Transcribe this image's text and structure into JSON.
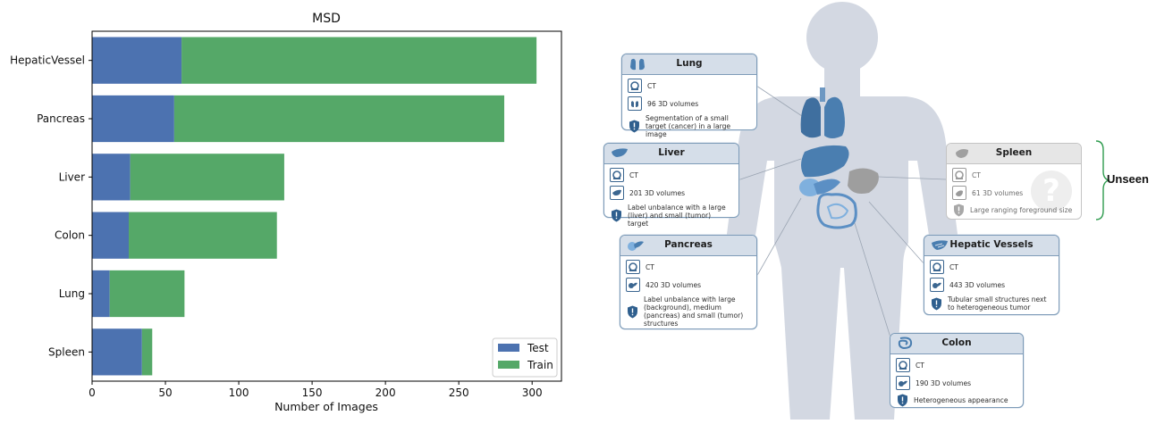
{
  "chart_data": {
    "type": "bar",
    "orientation": "horizontal",
    "stacked": true,
    "title": "MSD",
    "xlabel": "Number of Images",
    "ylabel": "",
    "categories": [
      "HepaticVessel",
      "Pancreas",
      "Liver",
      "Colon",
      "Lung",
      "Spleen"
    ],
    "series": [
      {
        "name": "Test",
        "color": "#4c72b0",
        "values": [
          61,
          56,
          26,
          25,
          12,
          34
        ]
      },
      {
        "name": "Train",
        "color": "#55a868",
        "values": [
          242,
          225,
          105,
          101,
          51,
          7
        ]
      }
    ],
    "xlim": [
      0,
      320
    ],
    "xticks": [
      "0",
      "50",
      "100",
      "150",
      "200",
      "250",
      "300"
    ],
    "grid": false,
    "legend_position": "bottom-right"
  },
  "diagram": {
    "unseen_label": "Unseen",
    "cards": {
      "lung": {
        "title": "Lung",
        "modality": "CT",
        "volumes": "96 3D volumes",
        "note": "Segmentation of a small target (cancer) in a large image"
      },
      "liver": {
        "title": "Liver",
        "modality": "CT",
        "volumes": "201 3D volumes",
        "note": "Label unbalance with a large (liver) and small (tumor) target"
      },
      "pancreas": {
        "title": "Pancreas",
        "modality": "CT",
        "volumes": "420 3D volumes",
        "note": "Label unbalance with large (background), medium (pancreas) and small (tumor) structures"
      },
      "spleen": {
        "title": "Spleen",
        "modality": "CT",
        "volumes": "61 3D volumes",
        "note": "Large ranging foreground size",
        "qmark": "?"
      },
      "hepatic": {
        "title": "Hepatic Vessels",
        "modality": "CT",
        "volumes": "443 3D volumes",
        "note": "Tubular small structures next to heterogeneous tumor"
      },
      "colon": {
        "title": "Colon",
        "modality": "CT",
        "volumes": "190 3D volumes",
        "note": "Heterogeneous appearance"
      }
    },
    "colors": {
      "accent": "#3b6690",
      "body": "#d3d8e2",
      "organ": "#4a7eb0"
    }
  }
}
